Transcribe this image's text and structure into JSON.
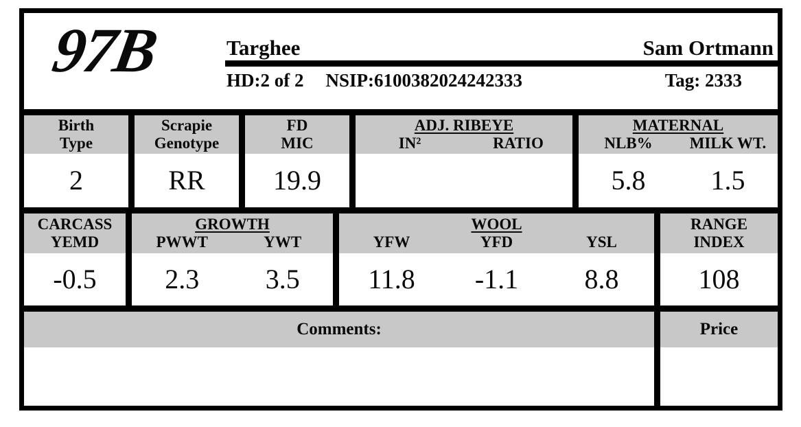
{
  "header": {
    "logo": "97B",
    "breed": "Targhee",
    "owner": "Sam Ortmann",
    "hd": "HD:2 of 2",
    "nsip": "NSIP:6100382024242333",
    "tag": "Tag: 2333"
  },
  "band1": {
    "birth_type": {
      "label_line1": "Birth",
      "label_line2": "Type",
      "value": "2"
    },
    "scrapie": {
      "label_line1": "Scrapie",
      "label_line2": "Genotype",
      "value": "RR"
    },
    "fd_mic": {
      "label_line1": "FD",
      "label_line2": "MIC",
      "value": "19.9"
    },
    "adj_ribeye": {
      "title": "ADJ. RIBEYE",
      "col1": "IN²",
      "col2": "RATIO",
      "val1": "",
      "val2": ""
    },
    "maternal": {
      "title": "MATERNAL",
      "col1": "NLB%",
      "col2": "MILK WT.",
      "val1": "5.8",
      "val2": "1.5"
    }
  },
  "band2": {
    "carcass": {
      "label_line1": "CARCASS",
      "label_line2": "YEMD",
      "value": "-0.5"
    },
    "growth": {
      "title": "GROWTH",
      "col1": "PWWT",
      "col2": "YWT",
      "val1": "2.3",
      "val2": "3.5"
    },
    "wool": {
      "title": "WOOL",
      "col1": "YFW",
      "col2": "YFD",
      "col3": "YSL",
      "val1": "11.8",
      "val2": "-1.1",
      "val3": "8.8"
    },
    "range_index": {
      "label_line1": "RANGE",
      "label_line2": "INDEX",
      "value": "108"
    }
  },
  "bottom": {
    "comments_label": "Comments:",
    "comments_value": "",
    "price_label": "Price",
    "price_value": ""
  },
  "colors": {
    "header_gray": "#c8c8c8",
    "border_black": "#000000",
    "page_white": "#ffffff"
  }
}
